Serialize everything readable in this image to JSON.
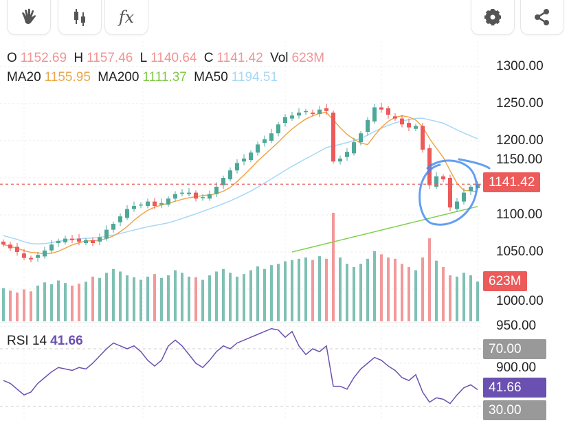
{
  "toolbar": {
    "left": [
      {
        "icon": "hand-icon"
      },
      {
        "icon": "candlestick-icon"
      },
      {
        "icon": "function-icon",
        "label": "fx"
      }
    ],
    "right": [
      {
        "icon": "gear-icon"
      },
      {
        "icon": "share-icon"
      }
    ]
  },
  "legend": {
    "o_label": "O",
    "o": "1152.69",
    "h_label": "H",
    "h": "1157.46",
    "l_label": "L",
    "l": "1140.64",
    "c_label": "C",
    "c": "1141.42",
    "vol_label": "Vol",
    "vol": "623M",
    "ma20_label": "MA20",
    "ma20": "1155.95",
    "ma200_label": "MA200",
    "ma200": "1111.37",
    "ma50_label": "MA50",
    "ma50": "1194.51"
  },
  "rsi_legend": {
    "label": "RSI 14",
    "value": "41.66"
  },
  "axis_labels": [
    "1300.00",
    "1250.00",
    "1200.00",
    "1150.00",
    "1100.00",
    "1050.00",
    "1000.00",
    "950.00",
    "900.00"
  ],
  "tags": {
    "price": "1141.42",
    "volume": "623M",
    "rsi70": "70.00",
    "rsi": "41.66",
    "rsi30": "30.00"
  },
  "colors": {
    "up": "#4ea898",
    "down": "#ec5a5a",
    "ma20": "#f0a64a",
    "ma50": "#a6d8f5",
    "ma200": "#7fd14a",
    "rsi": "#6a50b0",
    "annotation": "#3d86ee"
  },
  "chart_data": {
    "type": "candlestick",
    "ylim": [
      900,
      1300
    ],
    "close": [
      1060,
      1055,
      1050,
      1042,
      1040,
      1046,
      1052,
      1060,
      1065,
      1068,
      1066,
      1064,
      1066,
      1062,
      1070,
      1080,
      1088,
      1098,
      1108,
      1112,
      1114,
      1118,
      1112,
      1116,
      1122,
      1128,
      1130,
      1130,
      1122,
      1124,
      1128,
      1138,
      1150,
      1160,
      1170,
      1176,
      1184,
      1195,
      1202,
      1210,
      1222,
      1232,
      1234,
      1238,
      1240,
      1236,
      1242,
      1240,
      1172,
      1176,
      1185,
      1198,
      1210,
      1228,
      1245,
      1242,
      1235,
      1230,
      1222,
      1218,
      1220,
      1188,
      1140,
      1152,
      1148,
      1110,
      1118,
      1130,
      1138,
      1141.42
    ],
    "volume_m": [
      520,
      480,
      450,
      500,
      470,
      560,
      610,
      580,
      640,
      600,
      560,
      590,
      620,
      700,
      680,
      760,
      820,
      780,
      720,
      690,
      650,
      700,
      740,
      680,
      720,
      800,
      760,
      700,
      690,
      650,
      720,
      780,
      820,
      760,
      700,
      740,
      800,
      860,
      820,
      880,
      900,
      940,
      960,
      980,
      1000,
      960,
      1020,
      980,
      1700,
      1000,
      900,
      850,
      900,
      980,
      1100,
      1050,
      1000,
      980,
      900,
      850,
      800,
      1000,
      1300,
      950,
      850,
      720,
      700,
      760,
      720,
      623
    ],
    "rsi": [
      48,
      46,
      42,
      38,
      40,
      46,
      50,
      54,
      57,
      56,
      55,
      57,
      56,
      60,
      65,
      70,
      74,
      72,
      70,
      72,
      68,
      62,
      58,
      62,
      72,
      76,
      72,
      66,
      60,
      57,
      62,
      68,
      72,
      70,
      74,
      76,
      78,
      80,
      82,
      84,
      83,
      78,
      82,
      72,
      66,
      70,
      68,
      72,
      44,
      44,
      42,
      50,
      56,
      60,
      64,
      62,
      58,
      55,
      50,
      48,
      52,
      40,
      33,
      36,
      35,
      32,
      38,
      43,
      45,
      41.66
    ],
    "ma200": {
      "start_index": 42,
      "from": 1050,
      "to": 1111.37
    },
    "rsi_levels": [
      70,
      30
    ]
  }
}
